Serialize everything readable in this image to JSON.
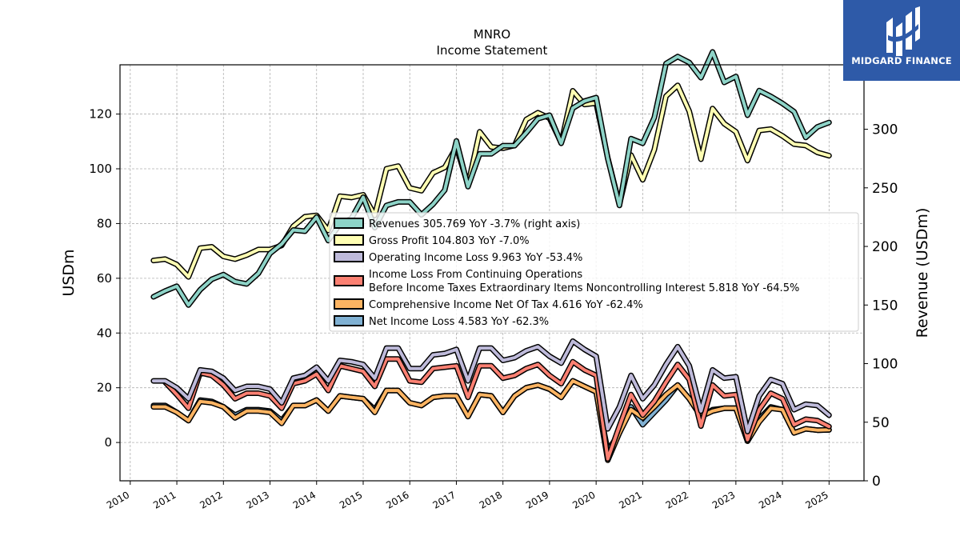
{
  "logo": {
    "text": "MIDGARD FINANCE",
    "color": "#2e5aa8"
  },
  "chart_data": {
    "type": "line",
    "title": "MNRO",
    "subtitle": "Income Statement",
    "ylabel": "USDm",
    "y2label": "Revenue (USDm)",
    "ylim": [
      -14,
      138
    ],
    "y2lim": [
      0,
      355
    ],
    "yticks": [
      0,
      20,
      40,
      60,
      80,
      100,
      120
    ],
    "y2ticks": [
      0,
      50,
      100,
      150,
      200,
      250,
      300,
      350
    ],
    "xlim": [
      2009.78,
      2025.75
    ],
    "xticks": [
      2010,
      2011,
      2012,
      2013,
      2014,
      2015,
      2016,
      2017,
      2018,
      2019,
      2020,
      2021,
      2022,
      2023,
      2024,
      2025
    ],
    "grid": true,
    "legend_placement": "center-right",
    "x": [
      2010.5,
      2010.75,
      2011.0,
      2011.25,
      2011.5,
      2011.75,
      2012.0,
      2012.25,
      2012.5,
      2012.75,
      2013.0,
      2013.25,
      2013.5,
      2013.75,
      2014.0,
      2014.25,
      2014.5,
      2014.75,
      2015.0,
      2015.25,
      2015.5,
      2015.75,
      2016.0,
      2016.25,
      2016.5,
      2016.75,
      2017.0,
      2017.25,
      2017.5,
      2017.75,
      2018.0,
      2018.25,
      2018.5,
      2018.75,
      2019.0,
      2019.25,
      2019.5,
      2019.75,
      2020.0,
      2020.25,
      2020.5,
      2020.75,
      2021.0,
      2021.25,
      2021.5,
      2021.75,
      2022.0,
      2022.25,
      2022.5,
      2022.75,
      2023.0,
      2023.25,
      2023.5,
      2023.75,
      2024.0,
      2024.25,
      2024.5,
      2024.75,
      2025.0
    ],
    "series": [
      {
        "name": "Revenues",
        "legend": "Revenues  305.769 YoY -3.7% (right axis)",
        "axis": "right",
        "color": "#8dd3c7",
        "values": [
          157,
          162,
          166,
          150,
          163,
          172,
          176,
          170,
          168,
          177,
          194,
          202,
          214,
          213,
          225,
          205,
          219,
          224,
          242,
          216,
          235,
          238,
          238,
          227,
          236,
          248,
          290,
          251,
          279,
          279,
          286,
          286,
          297,
          309,
          312,
          288,
          318,
          324,
          327,
          275,
          235,
          292,
          288,
          310,
          356,
          362,
          357,
          344,
          366,
          340,
          345,
          312,
          333,
          328,
          322,
          315,
          293,
          302,
          305.769
        ]
      },
      {
        "name": "Gross Profit",
        "legend": "Gross Profit  104.803 YoY -7.0%",
        "axis": "left",
        "color": "#ffffb3",
        "values": [
          66.5,
          67,
          65,
          60.5,
          71,
          71.5,
          68,
          67,
          68.5,
          70.5,
          70.5,
          72,
          79,
          82.5,
          83,
          77.5,
          90,
          89.5,
          90.5,
          83,
          100,
          101,
          93,
          92,
          98.5,
          100.5,
          108,
          94,
          113.5,
          108,
          107.5,
          108.5,
          118,
          120.5,
          118.5,
          109.5,
          128.5,
          123.5,
          124,
          104,
          87,
          105,
          96,
          107,
          126.5,
          130.5,
          121,
          103.5,
          122,
          116.5,
          113.5,
          103,
          114,
          114.5,
          112,
          109,
          108.5,
          106,
          104.803
        ]
      },
      {
        "name": "Operating Income Loss",
        "legend": "Operating Income Loss  9.963 YoY -53.4%",
        "axis": "left",
        "color": "#bebada",
        "values": [
          22.5,
          22.5,
          20,
          16,
          26.5,
          26,
          23.5,
          19,
          20.5,
          20.5,
          19.5,
          14.5,
          23.5,
          24.5,
          27.5,
          22.5,
          30,
          29.5,
          28.5,
          23.5,
          34.5,
          34.5,
          27,
          27,
          32,
          32.5,
          34,
          22.5,
          34.5,
          34.5,
          30,
          31,
          33.5,
          35,
          31.5,
          29,
          37,
          34,
          31.5,
          5,
          13,
          24.5,
          16,
          21,
          28.5,
          35,
          28,
          11.5,
          26.5,
          23.5,
          24,
          4,
          17,
          23,
          21.5,
          12,
          14,
          13.5,
          9.963
        ]
      },
      {
        "name": "Income Loss From Continuing Operations Before Income Taxes Extraordinary Items Noncontrolling Interest",
        "legend": [
          "Income Loss From Continuing Operations",
          "Before Income Taxes Extraordinary Items Noncontrolling Interest  5.818 YoY -64.5%"
        ],
        "axis": "left",
        "color": "#fb8072",
        "values": [
          null,
          22,
          17.5,
          12.5,
          25.5,
          24.5,
          21,
          16,
          18,
          18,
          17,
          12.5,
          21.5,
          22.5,
          25,
          19,
          28,
          27,
          26,
          20.5,
          30.5,
          30.5,
          22.5,
          22,
          27,
          27.5,
          28,
          16.5,
          28,
          28,
          23.5,
          24.5,
          27,
          28.5,
          24.5,
          21.5,
          29.5,
          26.5,
          24.5,
          -6,
          6,
          17.5,
          10,
          15,
          22,
          28.5,
          23,
          6,
          21,
          17,
          17.5,
          1,
          12,
          18,
          16,
          6.5,
          8.5,
          8,
          5.818
        ]
      },
      {
        "name": "Comprehensive Income Net Of Tax",
        "legend": "Comprehensive Income Net Of Tax  4.616 YoY -62.4%",
        "axis": "left",
        "color": "#fdb462",
        "values": [
          13,
          13,
          11,
          8,
          15,
          14.5,
          13,
          9,
          11.5,
          11.5,
          11,
          7,
          13.5,
          13.5,
          15.5,
          11.5,
          17,
          16.5,
          16,
          11,
          19,
          19,
          14.5,
          13.5,
          16.5,
          17,
          17,
          9.5,
          17.5,
          17,
          11,
          17,
          20,
          21,
          19.5,
          16.5,
          22.5,
          20.5,
          18.5,
          -6.5,
          3.5,
          12,
          9,
          13,
          17.5,
          21,
          16,
          9.5,
          11.5,
          12.5,
          12.5,
          0.5,
          7.5,
          12.5,
          12,
          3.5,
          5,
          4.5,
          4.616
        ]
      },
      {
        "name": "Net Income Loss",
        "legend": "Net Income Loss  4.583 YoY -62.3%",
        "axis": "left",
        "color": "#80b1d3",
        "values": [
          13.5,
          13.5,
          11,
          8,
          15.5,
          15,
          13,
          10,
          12,
          12,
          11.5,
          8,
          13.5,
          13.5,
          15.5,
          11.5,
          17,
          16.5,
          16,
          12,
          19,
          19,
          14.5,
          13.5,
          16.5,
          17,
          17,
          9.5,
          17.5,
          17,
          11,
          17,
          20,
          21,
          19.5,
          16.5,
          22.5,
          20.5,
          18.5,
          -3,
          3.5,
          13,
          6.5,
          11,
          15.5,
          21,
          16,
          9.5,
          12,
          12.5,
          12.5,
          0.5,
          8.5,
          13,
          12,
          3.5,
          5,
          4.5,
          4.583
        ]
      }
    ]
  }
}
